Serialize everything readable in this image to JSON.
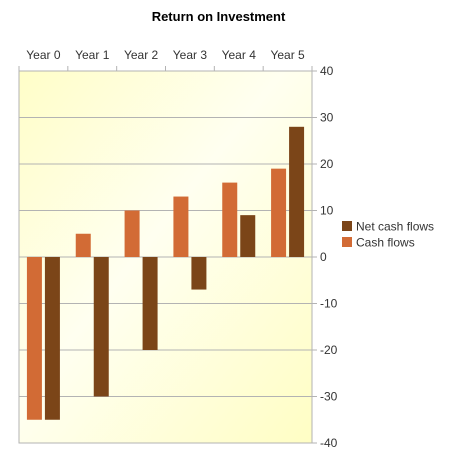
{
  "chart_data": {
    "type": "bar",
    "title": "Return on Investment",
    "xlabel": "",
    "ylabel": "",
    "categories": [
      "Year 0",
      "Year 1",
      "Year 2",
      "Year 3",
      "Year 4",
      "Year 5"
    ],
    "series": [
      {
        "name": "Cash flows",
        "color": "#d26b35",
        "values": [
          -35,
          5,
          10,
          13,
          16,
          19
        ]
      },
      {
        "name": "Net cash flows",
        "color": "#7b4518",
        "values": [
          -35,
          -30,
          -20,
          -7,
          9,
          28
        ]
      }
    ],
    "ylim": [
      -40,
      40
    ],
    "yticks": [
      "40",
      "30",
      "20",
      "10",
      "0",
      "-10",
      "-20",
      "-30",
      "-40"
    ],
    "x_axis_position": "top",
    "y_axis_position": "right",
    "grid": true,
    "legend": {
      "placement": "right",
      "entries": [
        "Net cash flows",
        "Cash flows"
      ]
    },
    "background": {
      "gradient_from": "#fffec8",
      "gradient_to": "#fffff2"
    }
  }
}
